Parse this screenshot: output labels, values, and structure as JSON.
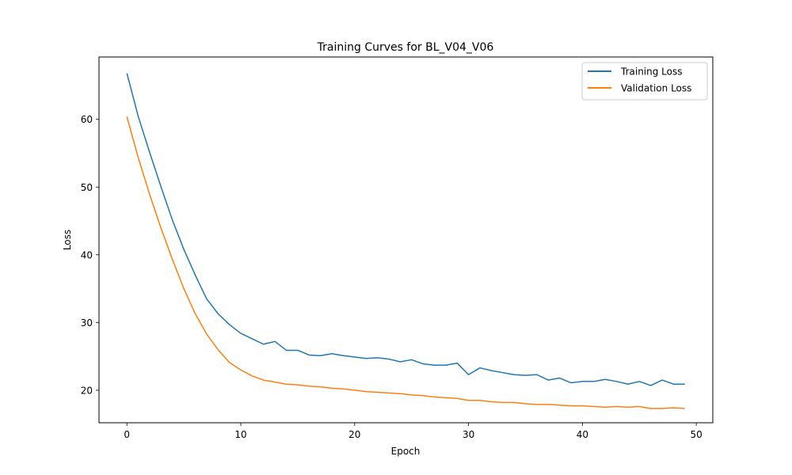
{
  "chart_data": {
    "type": "line",
    "title": "Training Curves for BL_V04_V06",
    "xlabel": "Epoch",
    "ylabel": "Loss",
    "xlim": [
      -2.45,
      51.45
    ],
    "ylim": [
      15.2,
      69.2
    ],
    "xticks": [
      0,
      10,
      20,
      30,
      40,
      50
    ],
    "yticks": [
      20,
      30,
      40,
      50,
      60
    ],
    "grid": false,
    "legend_position": "top-right",
    "x": [
      0,
      1,
      2,
      3,
      4,
      5,
      6,
      7,
      8,
      9,
      10,
      11,
      12,
      13,
      14,
      15,
      16,
      17,
      18,
      19,
      20,
      21,
      22,
      23,
      24,
      25,
      26,
      27,
      28,
      29,
      30,
      31,
      32,
      33,
      34,
      35,
      36,
      37,
      38,
      39,
      40,
      41,
      42,
      43,
      44,
      45,
      46,
      47,
      48,
      49
    ],
    "series": [
      {
        "name": "Training Loss",
        "color": "#1f77b4",
        "values": [
          66.8,
          60.4,
          55.1,
          50.0,
          45.1,
          40.8,
          37.0,
          33.5,
          31.3,
          29.7,
          28.4,
          27.6,
          26.8,
          27.2,
          25.9,
          25.9,
          25.2,
          25.1,
          25.4,
          25.1,
          24.9,
          24.7,
          24.8,
          24.6,
          24.2,
          24.5,
          23.9,
          23.7,
          23.7,
          24.0,
          22.3,
          23.3,
          22.9,
          22.6,
          22.3,
          22.2,
          22.3,
          21.5,
          21.8,
          21.1,
          21.3,
          21.3,
          21.6,
          21.3,
          20.9,
          21.3,
          20.7,
          21.5,
          20.9,
          20.9
        ]
      },
      {
        "name": "Validation Loss",
        "color": "#ff7f0e",
        "values": [
          60.4,
          54.3,
          48.9,
          43.9,
          39.3,
          35.0,
          31.3,
          28.3,
          26.0,
          24.1,
          23.0,
          22.1,
          21.5,
          21.2,
          20.9,
          20.8,
          20.6,
          20.5,
          20.3,
          20.2,
          20.0,
          19.8,
          19.7,
          19.6,
          19.5,
          19.3,
          19.2,
          19.0,
          18.9,
          18.8,
          18.5,
          18.5,
          18.3,
          18.2,
          18.2,
          18.0,
          17.9,
          17.9,
          17.8,
          17.7,
          17.7,
          17.6,
          17.5,
          17.6,
          17.5,
          17.6,
          17.3,
          17.3,
          17.4,
          17.3
        ]
      }
    ]
  }
}
